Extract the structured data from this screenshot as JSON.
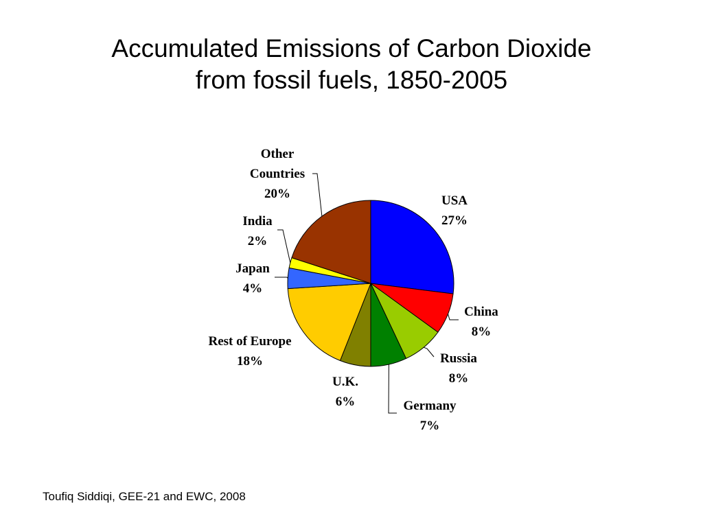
{
  "slide": {
    "title_line1": "Accumulated Emissions of Carbon Dioxide",
    "title_line2": "from fossil fuels, 1850-2005",
    "credit": "Toufiq Siddiqi, GEE-21 and EWC, 2008"
  },
  "chart_data": {
    "type": "pie",
    "title": "Accumulated Emissions of Carbon Dioxide from fossil fuels, 1850-2005",
    "unit": "%",
    "slices": [
      {
        "name": "USA",
        "label_lines": [
          "USA"
        ],
        "value": 27,
        "pct_label": "27%",
        "color": "#0000FF"
      },
      {
        "name": "China",
        "label_lines": [
          "China"
        ],
        "value": 8,
        "pct_label": "8%",
        "color": "#FF0000"
      },
      {
        "name": "Russia",
        "label_lines": [
          "Russia"
        ],
        "value": 8,
        "pct_label": "8%",
        "color": "#99CC00"
      },
      {
        "name": "Germany",
        "label_lines": [
          "Germany"
        ],
        "value": 7,
        "pct_label": "7%",
        "color": "#008000"
      },
      {
        "name": "U.K.",
        "label_lines": [
          "U.K."
        ],
        "value": 6,
        "pct_label": "6%",
        "color": "#808000"
      },
      {
        "name": "Rest of Europe",
        "label_lines": [
          "Rest of Europe"
        ],
        "value": 18,
        "pct_label": "18%",
        "color": "#FFCC00"
      },
      {
        "name": "Japan",
        "label_lines": [
          "Japan"
        ],
        "value": 4,
        "pct_label": "4%",
        "color": "#3366FF"
      },
      {
        "name": "India",
        "label_lines": [
          "India"
        ],
        "value": 2,
        "pct_label": "2%",
        "color": "#FFFF00"
      },
      {
        "name": "Other Countries",
        "label_lines": [
          "Other",
          "Countries"
        ],
        "value": 20,
        "pct_label": "20%",
        "color": "#993300"
      }
    ]
  }
}
